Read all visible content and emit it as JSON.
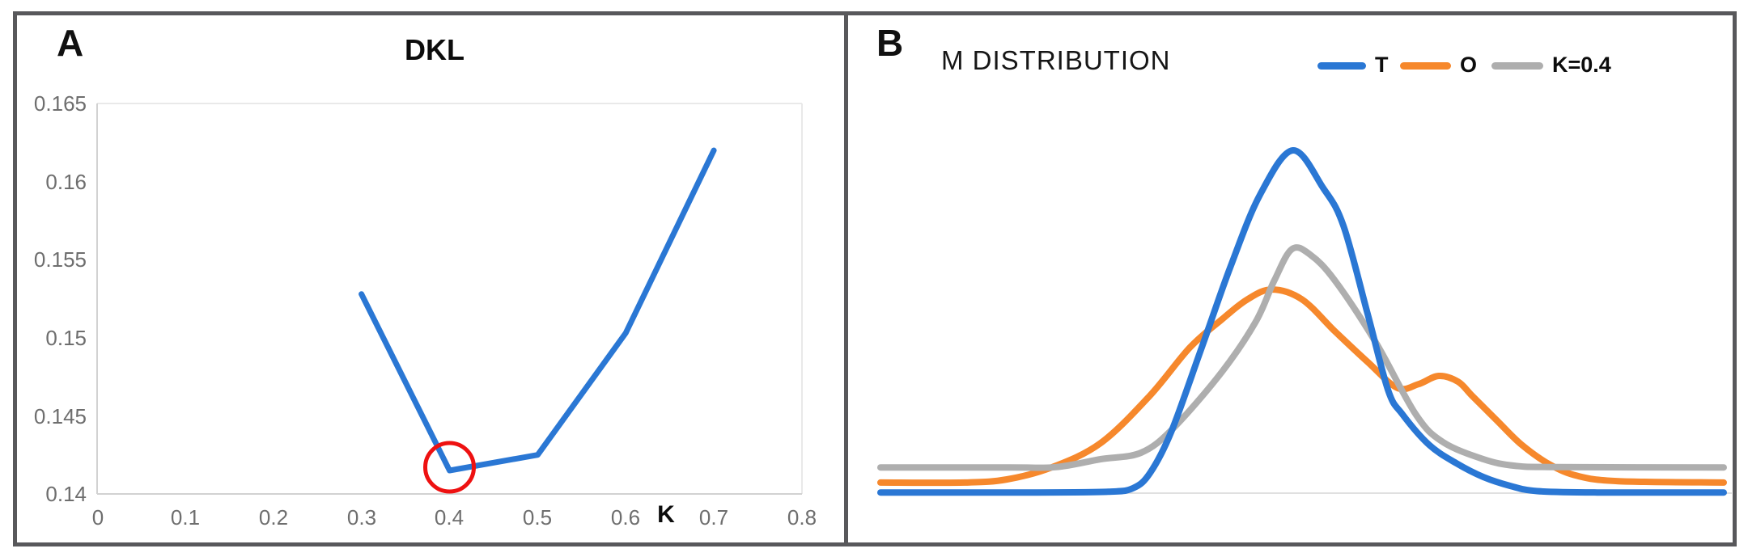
{
  "figure": {
    "panel_a": {
      "label": "A"
    },
    "panel_b": {
      "label": "B"
    }
  },
  "colors": {
    "blue": "#2a77d4",
    "orange": "#f6882c",
    "gray": "#aeaeae",
    "annotation_red": "#ee1111",
    "border": "#58585b",
    "axis": "#d2d2d2",
    "grid": "#e9e9e9",
    "baseline": "#e0e0e0",
    "tick_text": "#6e6e6e"
  },
  "chart_data": [
    {
      "panel": "A",
      "type": "line",
      "title": "DKL",
      "xlabel": "K",
      "ylabel": "",
      "x": [
        0.3,
        0.4,
        0.5,
        0.6,
        0.7
      ],
      "y": [
        0.1528,
        0.1415,
        0.1425,
        0.1503,
        0.162
      ],
      "xlim": [
        0,
        0.8
      ],
      "ylim": [
        0.14,
        0.165
      ],
      "xticks": [
        "0",
        "0.1",
        "0.2",
        "0.3",
        "0.4",
        "0.5",
        "0.6",
        "0.7",
        "0.8"
      ],
      "yticks": [
        "0.165",
        "0.16",
        "0.155",
        "0.15",
        "0.145",
        "0.14"
      ],
      "grid": "plot area bordered only, no inner gridlines",
      "line_color": "#2a77d4",
      "annotation": {
        "type": "circle",
        "x": 0.4,
        "y": 0.1415,
        "color": "#ee1111",
        "meaning": "minimum DKL highlighted at K=0.4"
      }
    },
    {
      "panel": "B",
      "type": "line",
      "title": "M DISTRIBUTION",
      "note": "density-style smooth curves; x normalized 0-1 across plot, y normalized to blue peak height above baseline",
      "legend_position": "top-right",
      "axes": "hidden except light bottom baseline",
      "series": [
        {
          "name": "O",
          "color": "#f6882c",
          "points": [
            [
              0.0,
              0.031
            ],
            [
              0.1,
              0.031
            ],
            [
              0.15,
              0.04
            ],
            [
              0.203,
              0.075
            ],
            [
              0.261,
              0.146
            ],
            [
              0.319,
              0.283
            ],
            [
              0.367,
              0.425
            ],
            [
              0.405,
              0.507
            ],
            [
              0.435,
              0.565
            ],
            [
              0.464,
              0.594
            ],
            [
              0.5,
              0.565
            ],
            [
              0.539,
              0.472
            ],
            [
              0.578,
              0.382
            ],
            [
              0.613,
              0.307
            ],
            [
              0.638,
              0.318
            ],
            [
              0.662,
              0.342
            ],
            [
              0.685,
              0.325
            ],
            [
              0.702,
              0.283
            ],
            [
              0.731,
              0.212
            ],
            [
              0.76,
              0.142
            ],
            [
              0.794,
              0.083
            ],
            [
              0.827,
              0.05
            ],
            [
              0.875,
              0.035
            ],
            [
              1.0,
              0.031
            ]
          ]
        },
        {
          "name": "K=0.4",
          "color": "#aeaeae",
          "points": [
            [
              0.0,
              0.075
            ],
            [
              0.15,
              0.075
            ],
            [
              0.208,
              0.076
            ],
            [
              0.261,
              0.099
            ],
            [
              0.309,
              0.118
            ],
            [
              0.347,
              0.189
            ],
            [
              0.405,
              0.354
            ],
            [
              0.445,
              0.5
            ],
            [
              0.467,
              0.62
            ],
            [
              0.488,
              0.712
            ],
            [
              0.51,
              0.695
            ],
            [
              0.539,
              0.62
            ],
            [
              0.587,
              0.441
            ],
            [
              0.635,
              0.229
            ],
            [
              0.667,
              0.149
            ],
            [
              0.715,
              0.099
            ],
            [
              0.752,
              0.08
            ],
            [
              0.8,
              0.076
            ],
            [
              1.0,
              0.075
            ]
          ]
        },
        {
          "name": "T",
          "color": "#2a77d4",
          "points": [
            [
              0.0,
              0.002
            ],
            [
              0.18,
              0.002
            ],
            [
              0.27,
              0.004
            ],
            [
              0.3,
              0.015
            ],
            [
              0.32,
              0.06
            ],
            [
              0.345,
              0.18
            ],
            [
              0.381,
              0.425
            ],
            [
              0.415,
              0.66
            ],
            [
              0.45,
              0.87
            ],
            [
              0.489,
              1.0
            ],
            [
              0.525,
              0.89
            ],
            [
              0.549,
              0.78
            ],
            [
              0.578,
              0.52
            ],
            [
              0.602,
              0.3
            ],
            [
              0.619,
              0.23
            ],
            [
              0.651,
              0.14
            ],
            [
              0.683,
              0.087
            ],
            [
              0.715,
              0.047
            ],
            [
              0.747,
              0.021
            ],
            [
              0.779,
              0.006
            ],
            [
              0.85,
              0.002
            ],
            [
              1.0,
              0.002
            ]
          ]
        }
      ],
      "legend_order": [
        "T",
        "O",
        "K=0.4"
      ]
    }
  ]
}
